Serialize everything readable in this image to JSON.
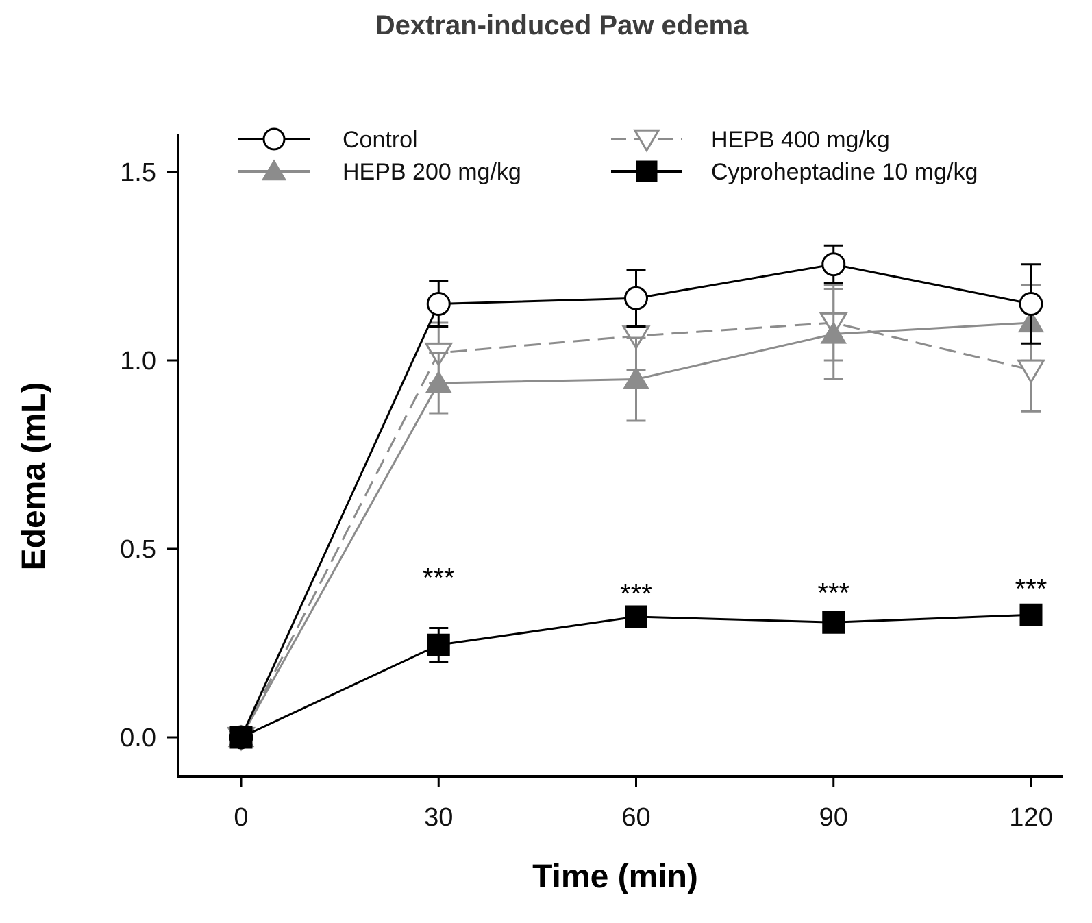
{
  "chart_data": {
    "type": "line",
    "title": "Dextran-induced Paw edema",
    "xlabel": "Time (min)",
    "ylabel": "Edema (mL)",
    "x": [
      0,
      30,
      60,
      90,
      120
    ],
    "x_ticks": [
      "0",
      "30",
      "60",
      "90",
      "120"
    ],
    "y_ticks": [
      "0.0",
      "0.5",
      "1.0",
      "1.5"
    ],
    "y_tick_values": [
      0.0,
      0.5,
      1.0,
      1.5
    ],
    "xlim": [
      -10,
      125
    ],
    "ylim": [
      -0.1,
      1.6
    ],
    "grid": false,
    "legend_position": "top",
    "series": [
      {
        "name": "Control",
        "values": [
          0.0,
          1.15,
          1.165,
          1.255,
          1.15
        ],
        "errors": [
          0.0,
          0.06,
          0.075,
          0.05,
          0.105
        ],
        "color": "#000000",
        "marker": "circle-open",
        "line": "solid"
      },
      {
        "name": "HEPB 200 mg/kg",
        "values": [
          0.0,
          0.94,
          0.95,
          1.07,
          1.1
        ],
        "errors": [
          0.0,
          0.08,
          0.11,
          0.12,
          0.1
        ],
        "color": "#8c8c8c",
        "marker": "triangle-up-filled",
        "line": "solid"
      },
      {
        "name": "HEPB 400 mg/kg",
        "values": [
          0.0,
          1.02,
          1.065,
          1.1,
          0.975
        ],
        "errors": [
          0.0,
          0.08,
          0.09,
          0.1,
          0.11
        ],
        "color": "#8c8c8c",
        "marker": "triangle-down-open",
        "line": "dashed"
      },
      {
        "name": "Cyproheptadine 10 mg/kg",
        "values": [
          0.0,
          0.245,
          0.32,
          0.305,
          0.325
        ],
        "errors": [
          0.0,
          0.045,
          0.0,
          0.0,
          0.0
        ],
        "color": "#000000",
        "marker": "square-filled",
        "line": "solid"
      }
    ],
    "annotations": [
      {
        "x": 30,
        "text": "***"
      },
      {
        "x": 60,
        "text": "***"
      },
      {
        "x": 90,
        "text": "***"
      },
      {
        "x": 120,
        "text": "***"
      }
    ]
  }
}
